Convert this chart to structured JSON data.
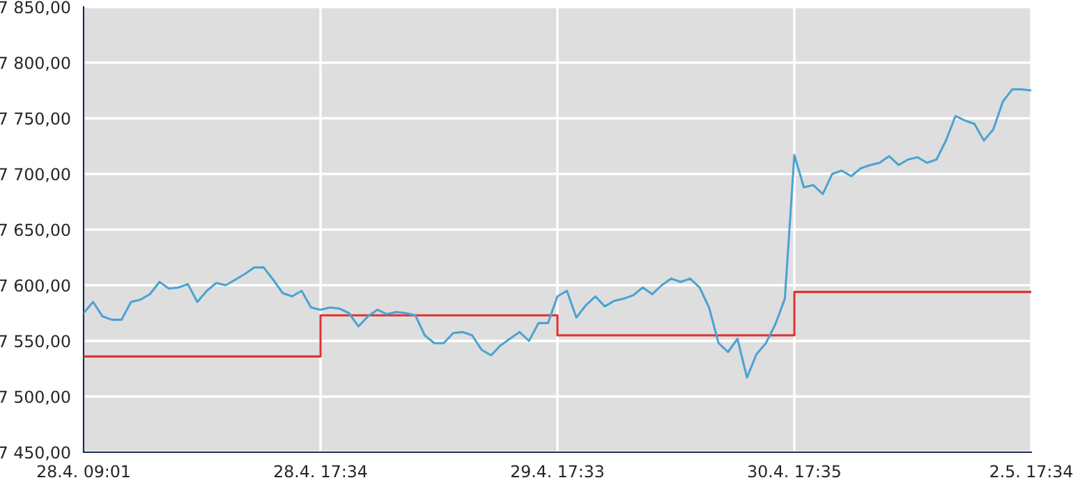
{
  "chart_data": {
    "type": "line",
    "categories": [
      "28.4. 09:01",
      null,
      null,
      null,
      null,
      null,
      null,
      null,
      null,
      null,
      null,
      null,
      null,
      null,
      null,
      null,
      null,
      null,
      null,
      null,
      null,
      null,
      null,
      null,
      null,
      "28.4. 17:34",
      null,
      null,
      null,
      null,
      null,
      null,
      null,
      null,
      null,
      null,
      null,
      null,
      null,
      null,
      null,
      null,
      null,
      null,
      null,
      null,
      null,
      null,
      null,
      null,
      "29.4. 17:33",
      null,
      null,
      null,
      null,
      null,
      null,
      null,
      null,
      null,
      null,
      null,
      null,
      null,
      null,
      null,
      null,
      null,
      null,
      null,
      null,
      null,
      null,
      null,
      null,
      "30.4. 17:35",
      null,
      null,
      null,
      null,
      null,
      null,
      null,
      null,
      null,
      null,
      null,
      null,
      null,
      null,
      null,
      null,
      null,
      null,
      null,
      null,
      null,
      null,
      null,
      null,
      "2.5. 17:34"
    ],
    "ylim": [
      7450,
      7850
    ],
    "yticks": [
      {
        "value": 7450,
        "label": "7 450,00"
      },
      {
        "value": 7500,
        "label": "7 500,00"
      },
      {
        "value": 7550,
        "label": "7 550,00"
      },
      {
        "value": 7600,
        "label": "7 600,00"
      },
      {
        "value": 7650,
        "label": "7 650,00"
      },
      {
        "value": 7700,
        "label": "7 700,00"
      },
      {
        "value": 7750,
        "label": "7 750,00"
      },
      {
        "value": 7800,
        "label": "7 800,00"
      },
      {
        "value": 7850,
        "label": "7 850,00"
      }
    ],
    "grid": true,
    "series": [
      {
        "type": "step",
        "color": "#e03030",
        "values": [
          7536,
          7536,
          7536,
          7536,
          7536,
          7536,
          7536,
          7536,
          7536,
          7536,
          7536,
          7536,
          7536,
          7536,
          7536,
          7536,
          7536,
          7536,
          7536,
          7536,
          7536,
          7536,
          7536,
          7536,
          7536,
          7573,
          7573,
          7573,
          7573,
          7573,
          7573,
          7573,
          7573,
          7573,
          7573,
          7573,
          7573,
          7573,
          7573,
          7573,
          7573,
          7573,
          7573,
          7573,
          7573,
          7573,
          7573,
          7573,
          7573,
          7573,
          7555,
          7555,
          7555,
          7555,
          7555,
          7555,
          7555,
          7555,
          7555,
          7555,
          7555,
          7555,
          7555,
          7555,
          7555,
          7555,
          7555,
          7555,
          7555,
          7555,
          7555,
          7555,
          7555,
          7555,
          7555,
          7594,
          7594,
          7594,
          7594,
          7594,
          7594,
          7594,
          7594,
          7594,
          7594,
          7594,
          7594,
          7594,
          7594,
          7594,
          7594,
          7594,
          7594,
          7594,
          7594,
          7594,
          7594,
          7594,
          7594,
          7594,
          7594
        ]
      },
      {
        "color": "#4aa3d2",
        "values": [
          7575,
          7585,
          7572,
          7569,
          7569,
          7585,
          7587,
          7592,
          7603,
          7597,
          7598,
          7601,
          7585,
          7595,
          7602,
          7600,
          7605,
          7610,
          7616,
          7616,
          7605,
          7593,
          7590,
          7595,
          7580,
          7578,
          7580,
          7579,
          7575,
          7563,
          7572,
          7578,
          7574,
          7576,
          7575,
          7573,
          7555,
          7548,
          7548,
          7557,
          7558,
          7555,
          7542,
          7537,
          7546,
          7552,
          7558,
          7550,
          7566,
          7566,
          7590,
          7595,
          7571,
          7582,
          7590,
          7581,
          7586,
          7588,
          7591,
          7598,
          7592,
          7600,
          7606,
          7603,
          7606,
          7598,
          7580,
          7548,
          7540,
          7552,
          7517,
          7538,
          7548,
          7565,
          7588,
          7717,
          7688,
          7690,
          7682,
          7700,
          7703,
          7698,
          7705,
          7708,
          7710,
          7716,
          7708,
          7713,
          7715,
          7710,
          7713,
          7730,
          7752,
          7748,
          7745,
          7730,
          7740,
          7765,
          7776,
          7776,
          7775
        ]
      }
    ]
  }
}
